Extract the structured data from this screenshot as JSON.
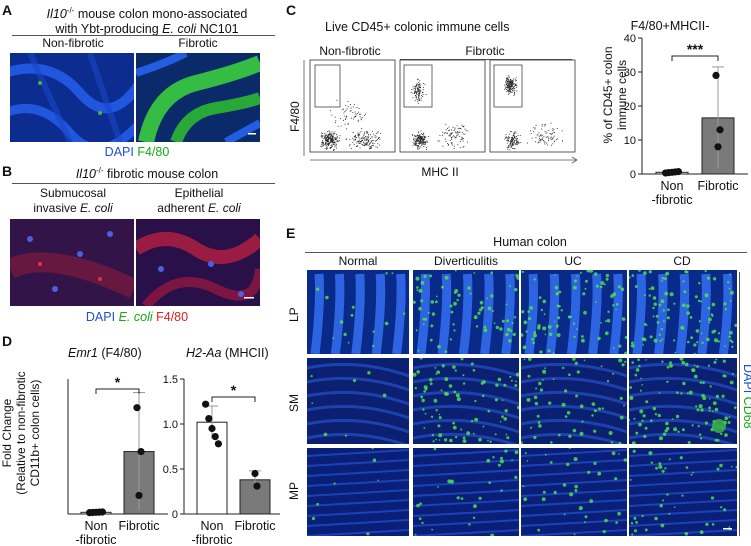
{
  "panelA": {
    "letter": "A",
    "title_gene": "Il10",
    "title_sup": "-/-",
    "title_rest": " mouse colon mono-associated",
    "title_line2_pre": "with Ybt-producing ",
    "title_line2_species": "E. coli",
    "title_line2_post": " NC101",
    "groups": [
      "Non-fibrotic",
      "Fibrotic"
    ],
    "stain_dapi": "DAPI",
    "stain_marker": "F4/80"
  },
  "panelB": {
    "letter": "B",
    "title_gene": "Il10",
    "title_sup": "-/-",
    "title_rest": " fibrotic mouse colon",
    "groups": [
      {
        "line1": "Submucosal",
        "line2_pre": "invasive ",
        "line2_species": "E. coli"
      },
      {
        "line1": "Epithelial",
        "line2_pre": "adherent ",
        "line2_species": "E. coli"
      }
    ],
    "stain_dapi": "DAPI",
    "stain_ecoli": "E. coli",
    "stain_marker": "F4/80"
  },
  "panelC": {
    "letter": "C",
    "title": "Live CD45+ colonic immune cells",
    "groups": [
      "Non-fibrotic",
      "Fibrotic"
    ],
    "flow_ylabel": "F4/80",
    "flow_xlabel": "MHC II"
  },
  "panelD": {
    "letter": "D",
    "left_gene": "Emr1",
    "left_suffix": " (F4/80)",
    "right_gene": "H2-Aa",
    "right_suffix": " (MHCII)",
    "ylabel": [
      "Fold Change",
      "(Relative to non-fibrotic",
      "CD11b+ colon cells)"
    ]
  },
  "panelE": {
    "letter": "E",
    "title": "Human colon",
    "columns": [
      "Normal",
      "Diverticulitis",
      "UC",
      "CD"
    ],
    "rows": [
      "LP",
      "SM",
      "MP"
    ],
    "stain_dapi": "DAPI",
    "stain_marker": "CD68"
  },
  "chart_data": [
    {
      "type": "bar",
      "title": "F4/80+MHCII-",
      "ylabel": "% of CD45+ colon immune cells",
      "categories": [
        "Non\n-fibrotic",
        "Fibrotic"
      ],
      "values": [
        0.5,
        16.5
      ],
      "error": [
        0.3,
        15
      ],
      "points": [
        [
          0.3,
          0.4,
          0.5,
          0.6,
          0.7
        ],
        [
          8,
          13,
          29
        ]
      ],
      "ylim": [
        0,
        40
      ],
      "yticks": [
        0,
        10,
        20,
        30,
        40
      ],
      "significance": "***",
      "colors": [
        "#ffffff",
        "#7a7a7a"
      ]
    },
    {
      "type": "bar",
      "title": "Emr1 (F4/80)",
      "ylabel": "Fold Change (Relative to non-fibrotic CD11b+ colon cells)",
      "categories": [
        "Non\n-fibrotic",
        "Fibrotic"
      ],
      "values": [
        1,
        37
      ],
      "error": [
        0.3,
        35
      ],
      "points": [
        [
          0.8,
          0.9,
          1.0,
          1.1,
          1.2
        ],
        [
          11,
          37,
          63
        ]
      ],
      "ylim": [
        0,
        80
      ],
      "yticks": [],
      "significance": "*",
      "colors": [
        "#ffffff",
        "#7a7a7a"
      ]
    },
    {
      "type": "bar",
      "title": "H2-Aa (MHCII)",
      "ylabel": "",
      "categories": [
        "Non\n-fibrotic",
        "Fibrotic"
      ],
      "values": [
        1.02,
        0.38
      ],
      "error": [
        0.18,
        0.1
      ],
      "points": [
        [
          1.22,
          1.06,
          0.95,
          0.86,
          0.78
        ],
        [
          0.45,
          0.31
        ]
      ],
      "ylim": [
        0,
        1.5
      ],
      "yticks": [
        0,
        0.5,
        1.0,
        1.5
      ],
      "significance": "*",
      "colors": [
        "#ffffff",
        "#7a7a7a"
      ]
    }
  ]
}
